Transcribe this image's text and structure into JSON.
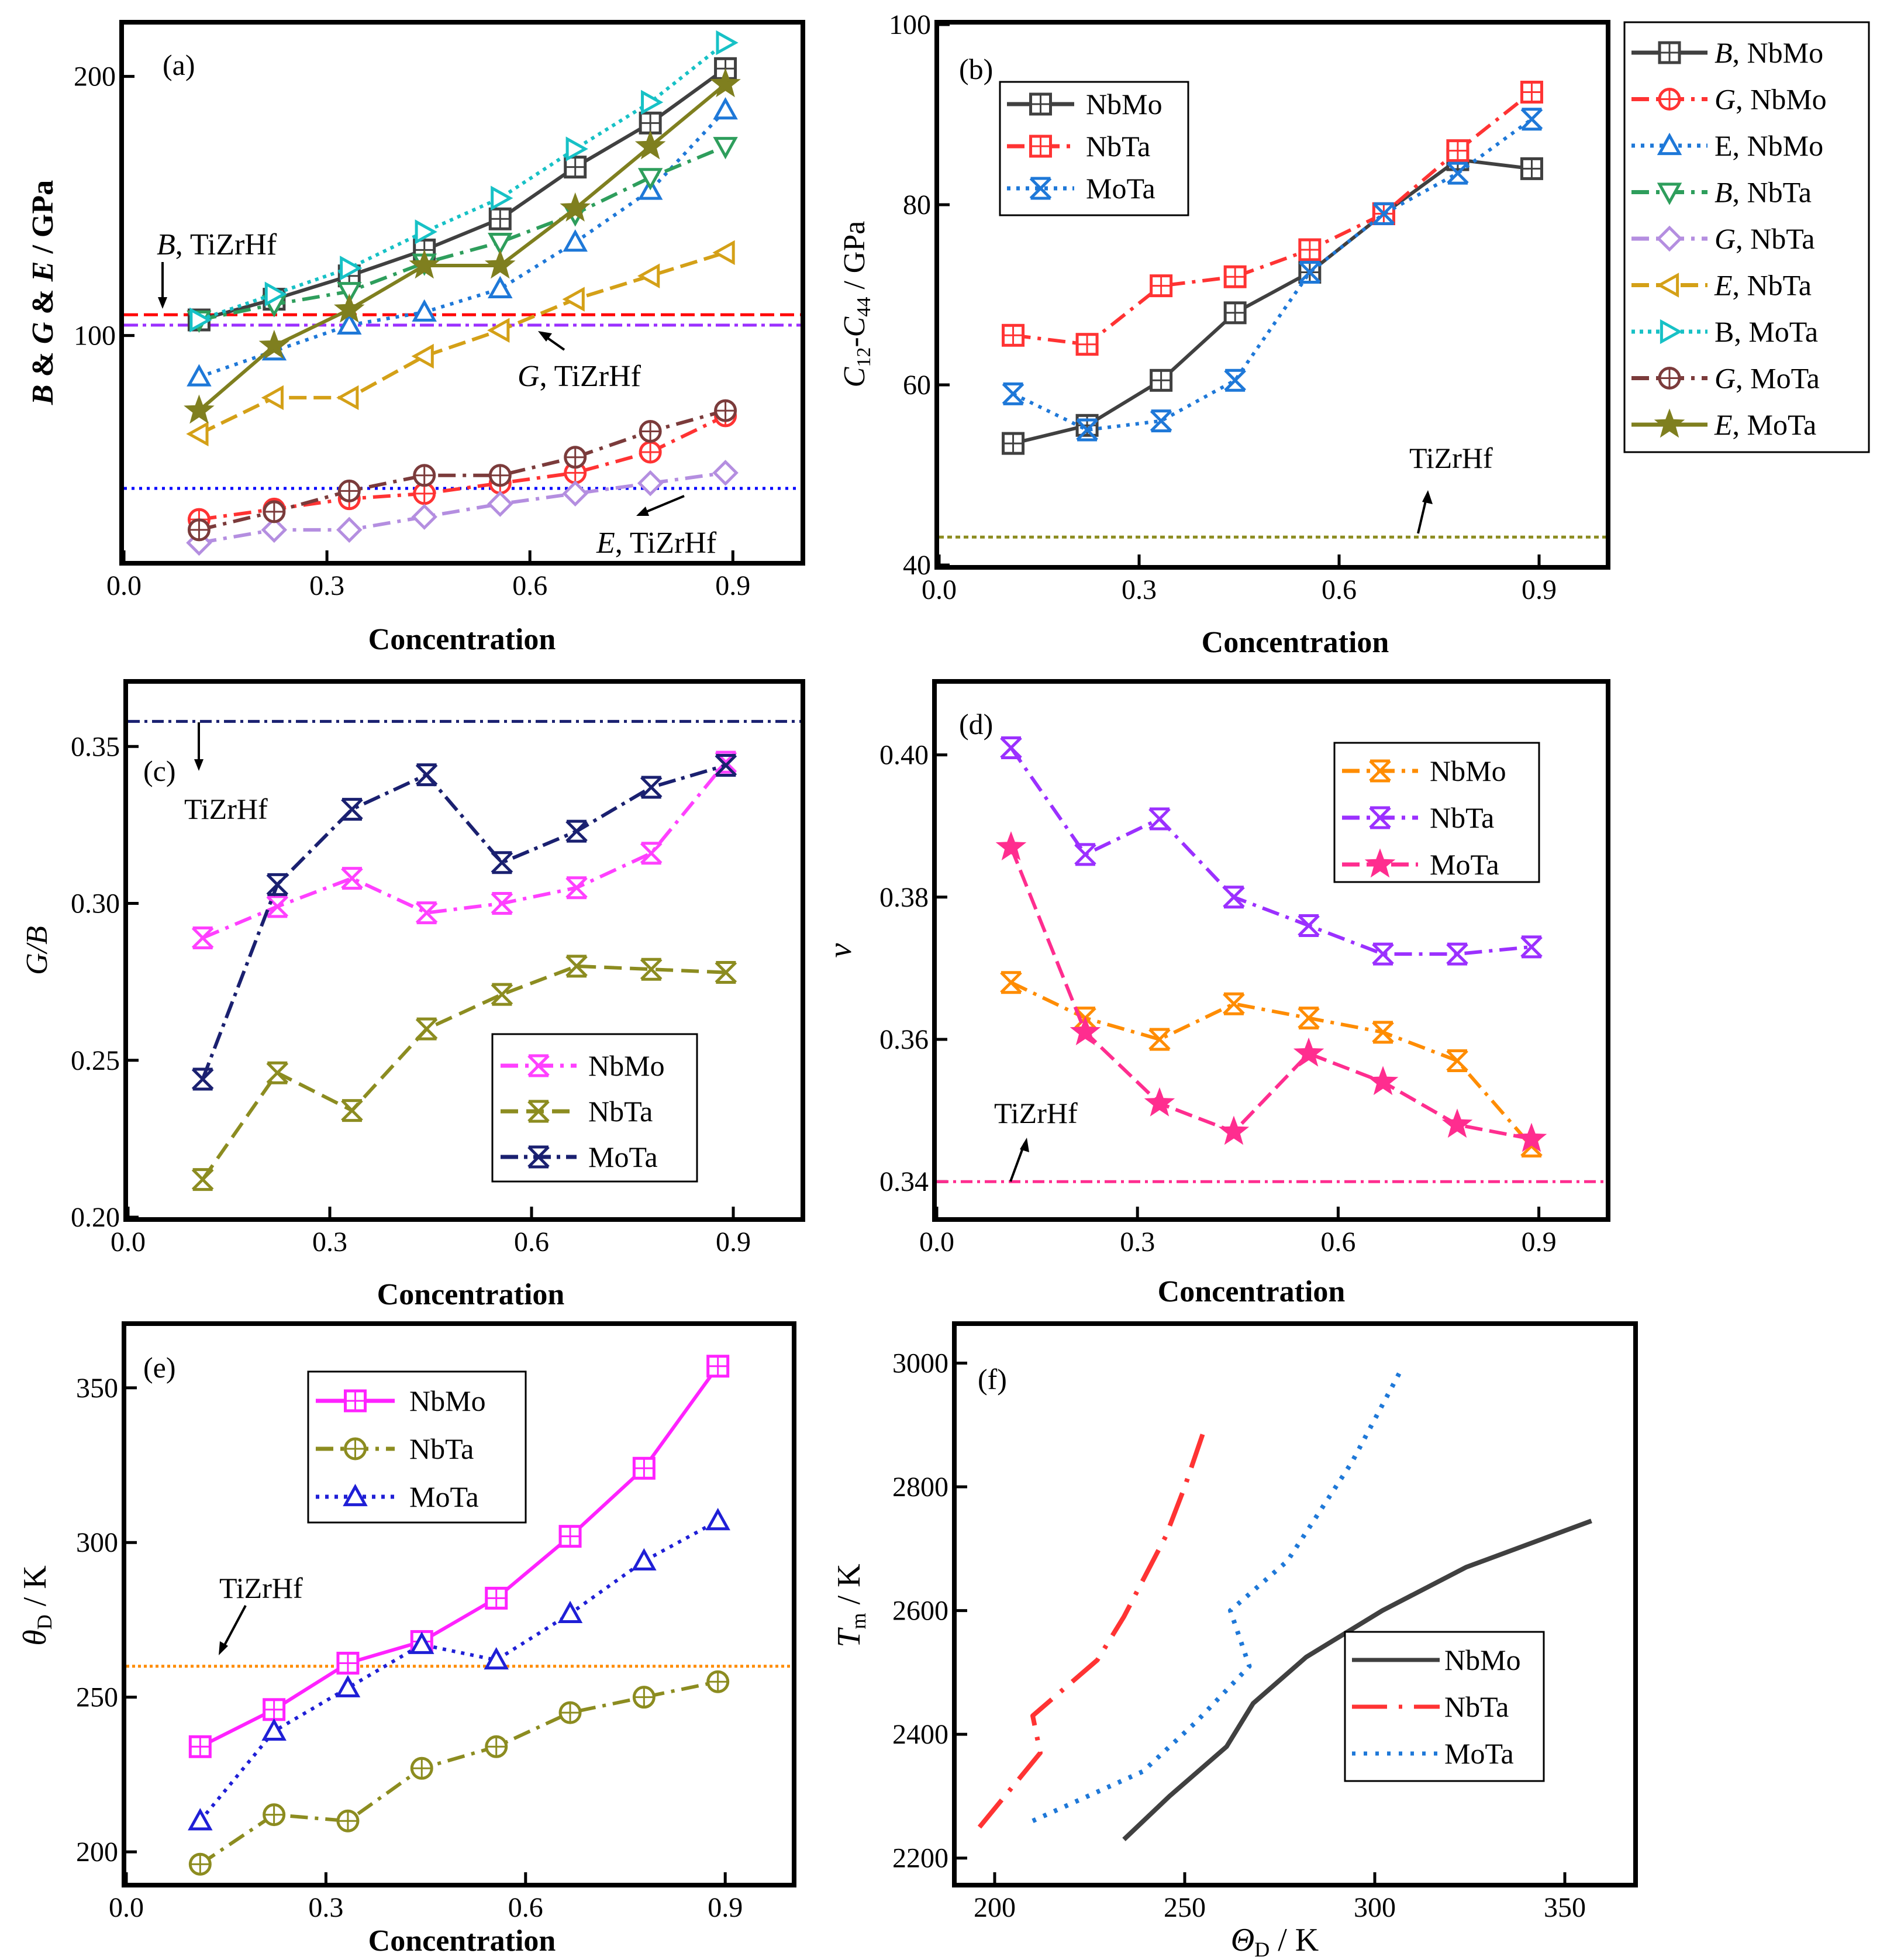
{
  "chart_data": [
    {
      "id": "a",
      "type": "line",
      "panel_label": "(a)",
      "xlabel": "Concentration",
      "ylabel": "B & G & E / GPa",
      "xlim": [
        0,
        1.0
      ],
      "ylim": [
        13,
        220
      ],
      "xticks": [
        0.0,
        0.3,
        0.6,
        0.9
      ],
      "yticks": [
        100,
        200
      ],
      "xtick_labels": [
        "0.0",
        "0.3",
        "0.6",
        "0.9"
      ],
      "ytick_labels": [
        "100",
        "200"
      ],
      "x": [
        0.111,
        0.222,
        0.333,
        0.444,
        0.556,
        0.667,
        0.778,
        0.889
      ],
      "series": [
        {
          "name": "B, NbMo",
          "color": "#404040",
          "dash": "",
          "marker": "square",
          "values": [
            106,
            114,
            123,
            133,
            145,
            165,
            182,
            203
          ]
        },
        {
          "name": "G, NbMo",
          "color": "#ff3333",
          "dash": "30 12 6 12",
          "marker": "circle",
          "values": [
            29,
            33,
            37,
            39,
            43,
            47,
            55,
            69
          ]
        },
        {
          "name": "E, NbMo",
          "color": "#1e78d8",
          "dash": "6 10",
          "marker": "triangle-up",
          "values": [
            84,
            94,
            104,
            109,
            118,
            136,
            156,
            187
          ]
        },
        {
          "name": "B, NbTa",
          "color": "#2e9e5c",
          "dash": "30 12 6 12",
          "marker": "triangle-down",
          "values": [
            106,
            112,
            117,
            128,
            136,
            147,
            161,
            173
          ]
        },
        {
          "name": "G, NbTa",
          "color": "#b48ee0",
          "dash": "30 12 6 12",
          "marker": "diamond",
          "values": [
            20,
            25,
            25,
            30,
            35,
            39,
            43,
            47
          ]
        },
        {
          "name": "E, NbTa",
          "color": "#d4a017",
          "dash": "30 12",
          "marker": "triangle-left",
          "values": [
            62,
            76,
            76,
            92,
            102,
            114,
            123,
            132
          ]
        },
        {
          "name": "B, MoTa",
          "color": "#17c1c6",
          "dash": "6 8",
          "marker": "triangle-right",
          "values": [
            106,
            116,
            126,
            140,
            153,
            172,
            190,
            213
          ]
        },
        {
          "name": "G, MoTa",
          "color": "#7b3b3b",
          "dash": "30 12 6 12",
          "marker": "circle",
          "values": [
            25,
            32,
            40,
            46,
            46,
            53,
            63,
            71
          ]
        },
        {
          "name": "E, MoTa",
          "color": "#7f7f1f",
          "dash": "",
          "marker": "star",
          "values": [
            71,
            96,
            110,
            127,
            127,
            149,
            173,
            197
          ]
        }
      ],
      "hlines": [
        {
          "name": "B, TiZrHf",
          "value": 108,
          "color": "#ff0000",
          "dash": "24 10"
        },
        {
          "name": "G, TiZrHf",
          "value": 104,
          "color": "#9b30ff",
          "dash": "24 8 6 8"
        },
        {
          "name": "E, TiZrHf",
          "value": 41,
          "color": "#0000ff",
          "dash": "5 8"
        }
      ],
      "annotations": [
        {
          "parts": [
            "B",
            ", TiZrHf"
          ]
        },
        {
          "parts": [
            "G",
            ", TiZrHf"
          ]
        },
        {
          "parts": [
            "E",
            ", TiZrHf"
          ]
        }
      ],
      "legend": {
        "placement": "outside-right",
        "entries": [
          {
            "italic": "B",
            "rest": ", NbMo"
          },
          {
            "italic": "G",
            "rest": ", NbMo"
          },
          {
            "italic": "",
            "rest": "E, NbMo"
          },
          {
            "italic": "B",
            "rest": ", NbTa"
          },
          {
            "italic": "G",
            "rest": ", NbTa"
          },
          {
            "italic": "E",
            "rest": ", NbTa"
          },
          {
            "italic": "",
            "rest": "B, MoTa"
          },
          {
            "italic": "G",
            "rest": ", MoTa"
          },
          {
            "italic": "E",
            "rest": ", MoTa"
          }
        ]
      }
    },
    {
      "id": "b",
      "type": "line",
      "panel_label": "(b)",
      "xlabel": "Concentration",
      "ylabel": "C12-C44 / GPa",
      "xlim": [
        0,
        1.0
      ],
      "ylim": [
        40,
        100
      ],
      "xticks": [
        0.0,
        0.3,
        0.6,
        0.9
      ],
      "yticks": [
        40,
        60,
        80,
        100
      ],
      "xtick_labels": [
        "0.0",
        "0.3",
        "0.6",
        "0.9"
      ],
      "ytick_labels": [
        "40",
        "60",
        "80",
        "100"
      ],
      "x": [
        0.111,
        0.222,
        0.333,
        0.444,
        0.556,
        0.667,
        0.778,
        0.889
      ],
      "series": [
        {
          "name": "NbMo",
          "color": "#404040",
          "dash": "",
          "marker": "square",
          "values": [
            53.5,
            55.5,
            60.5,
            68,
            72.5,
            79,
            85,
            84
          ]
        },
        {
          "name": "NbTa",
          "color": "#ff3333",
          "dash": "30 12 6 12",
          "marker": "square",
          "values": [
            65.5,
            64.5,
            71,
            72,
            75,
            79,
            86,
            92.5
          ]
        },
        {
          "name": "MoTa",
          "color": "#1e78d8",
          "dash": "6 10",
          "marker": "x",
          "values": [
            59,
            55,
            56,
            60.5,
            72.5,
            79,
            83.5,
            89.5
          ]
        }
      ],
      "hlines": [
        {
          "name": "TiZrHf",
          "value": 43.1,
          "color": "#8c8c20",
          "dash": "8 6"
        }
      ],
      "annotations": [
        {
          "text": "TiZrHf"
        }
      ],
      "legend": {
        "placement": "top-left",
        "entries": [
          "NbMo",
          "NbTa",
          "MoTa"
        ]
      }
    },
    {
      "id": "c",
      "type": "line",
      "panel_label": "(c)",
      "xlabel": "Concentration",
      "ylabel": "G/B",
      "xlim": [
        0,
        1.0
      ],
      "ylim": [
        0.2,
        0.37
      ],
      "xticks": [
        0.0,
        0.3,
        0.6,
        0.9
      ],
      "yticks": [
        0.2,
        0.25,
        0.3,
        0.35
      ],
      "xtick_labels": [
        "0.0",
        "0.3",
        "0.6",
        "0.9"
      ],
      "ytick_labels": [
        "0.20",
        "0.25",
        "0.30",
        "0.35"
      ],
      "x": [
        0.111,
        0.222,
        0.333,
        0.444,
        0.556,
        0.667,
        0.778,
        0.889
      ],
      "series": [
        {
          "name": "NbMo",
          "color": "#ff40ff",
          "dash": "30 12 6 12",
          "marker": "x",
          "values": [
            0.289,
            0.299,
            0.308,
            0.297,
            0.3,
            0.305,
            0.316,
            0.345
          ]
        },
        {
          "name": "NbTa",
          "color": "#8c8c20",
          "dash": "30 14",
          "marker": "x",
          "values": [
            0.212,
            0.246,
            0.234,
            0.26,
            0.271,
            0.28,
            0.279,
            0.278
          ]
        },
        {
          "name": "MoTa",
          "color": "#1a2070",
          "dash": "30 10 6 10",
          "marker": "x",
          "values": [
            0.244,
            0.306,
            0.33,
            0.341,
            0.313,
            0.323,
            0.337,
            0.344
          ]
        }
      ],
      "hlines": [
        {
          "name": "TiZrHf",
          "value": 0.358,
          "color": "#1a2070",
          "dash": "20 8 5 8"
        }
      ],
      "annotations": [
        {
          "text": "TiZrHf"
        }
      ],
      "legend": {
        "placement": "bottom-right",
        "entries": [
          "NbMo",
          "NbTa",
          "MoTa"
        ]
      }
    },
    {
      "id": "d",
      "type": "line",
      "panel_label": "(d)",
      "xlabel": "Concentration",
      "ylabel": "ν",
      "xlim": [
        0,
        1.0
      ],
      "ylim": [
        0.335,
        0.41
      ],
      "xticks": [
        0.0,
        0.3,
        0.6,
        0.9
      ],
      "yticks": [
        0.34,
        0.36,
        0.38,
        0.4
      ],
      "xtick_labels": [
        "0.0",
        "0.3",
        "0.6",
        "0.9"
      ],
      "ytick_labels": [
        "0.34",
        "0.36",
        "0.38",
        "0.40"
      ],
      "x": [
        0.111,
        0.222,
        0.333,
        0.444,
        0.556,
        0.667,
        0.778,
        0.889
      ],
      "series": [
        {
          "name": "NbMo",
          "color": "#ff8c00",
          "dash": "30 12 6 12",
          "marker": "x",
          "values": [
            0.368,
            0.363,
            0.36,
            0.365,
            0.363,
            0.361,
            0.357,
            0.345
          ]
        },
        {
          "name": "NbTa",
          "color": "#9b30ff",
          "dash": "30 12 6 12",
          "marker": "x",
          "values": [
            0.401,
            0.386,
            0.391,
            0.38,
            0.376,
            0.372,
            0.372,
            0.373
          ]
        },
        {
          "name": "MoTa",
          "color": "#ff2d8f",
          "dash": "30 12",
          "marker": "star",
          "values": [
            0.387,
            0.361,
            0.351,
            0.347,
            0.358,
            0.354,
            0.348,
            0.346
          ]
        }
      ],
      "hlines": [
        {
          "name": "TiZrHf",
          "value": 0.34,
          "color": "#ff2d8f",
          "dash": "20 8 5 8"
        }
      ],
      "annotations": [
        {
          "text": "TiZrHf"
        }
      ],
      "legend": {
        "placement": "top-center",
        "entries": [
          "NbMo",
          "NbTa",
          "MoTa"
        ]
      }
    },
    {
      "id": "e",
      "type": "line",
      "panel_label": "(e)",
      "xlabel": "Concentration",
      "ylabel": "θD / K",
      "xlim": [
        0,
        1.0
      ],
      "ylim": [
        190,
        370
      ],
      "xticks": [
        0.0,
        0.3,
        0.6,
        0.9
      ],
      "yticks": [
        200,
        250,
        300,
        350
      ],
      "xtick_labels": [
        "0.0",
        "0.3",
        "0.6",
        "0.9"
      ],
      "ytick_labels": [
        "200",
        "250",
        "300",
        "350"
      ],
      "x": [
        0.111,
        0.222,
        0.333,
        0.444,
        0.556,
        0.667,
        0.778,
        0.889
      ],
      "series": [
        {
          "name": "NbMo",
          "color": "#ff22ff",
          "dash": "",
          "marker": "square",
          "values": [
            234,
            246,
            261,
            268,
            282,
            302,
            324,
            357
          ]
        },
        {
          "name": "NbTa",
          "color": "#8c8c20",
          "dash": "30 12 6 12",
          "marker": "circle",
          "values": [
            196,
            212,
            210,
            227,
            234,
            245,
            250,
            255
          ]
        },
        {
          "name": "MoTa",
          "color": "#1f1fd6",
          "dash": "6 10",
          "marker": "triangle-up",
          "values": [
            210,
            239,
            253,
            267,
            262,
            277,
            294,
            307
          ]
        }
      ],
      "hlines": [
        {
          "name": "TiZrHf",
          "value": 260,
          "color": "#ff8c00",
          "dash": "5 5"
        }
      ],
      "annotations": [
        {
          "text": "TiZrHf"
        }
      ],
      "legend": {
        "placement": "top-left",
        "entries": [
          "NbMo",
          "NbTa",
          "MoTa"
        ]
      }
    },
    {
      "id": "f",
      "type": "line",
      "panel_label": "(f)",
      "xlabel": "θD / K",
      "ylabel": "Tm / K",
      "xlim": [
        190,
        368
      ],
      "ylim": [
        2160,
        3060
      ],
      "xticks": [
        200,
        250,
        300,
        350
      ],
      "yticks": [
        2200,
        2400,
        2600,
        2800,
        3000
      ],
      "xtick_labels": [
        "200",
        "250",
        "300",
        "350"
      ],
      "ytick_labels": [
        "2200",
        "2400",
        "2600",
        "2800",
        "3000"
      ],
      "series": [
        {
          "name": "NbMo",
          "color": "#404040",
          "dash": "",
          "marker": "none",
          "x": [
            234,
            246,
            261,
            268,
            282,
            302,
            324,
            357
          ],
          "values": [
            2230,
            2300,
            2380,
            2450,
            2525,
            2600,
            2670,
            2745
          ]
        },
        {
          "name": "NbTa",
          "color": "#ff3333",
          "dash": "60 20 6 20",
          "marker": "none",
          "x": [
            196,
            212,
            210,
            227,
            234,
            245,
            250,
            255
          ],
          "values": [
            2250,
            2370,
            2430,
            2520,
            2590,
            2720,
            2800,
            2890
          ]
        },
        {
          "name": "MoTa",
          "color": "#1e78d8",
          "dash": "6 14",
          "marker": "none",
          "x": [
            210,
            239,
            253,
            267,
            262,
            277,
            294,
            307
          ],
          "values": [
            2260,
            2340,
            2420,
            2510,
            2600,
            2680,
            2840,
            2990
          ]
        }
      ],
      "hlines": [],
      "annotations": [],
      "legend": {
        "placement": "bottom-right",
        "entries": [
          "NbMo",
          "NbTa",
          "MoTa"
        ]
      }
    }
  ]
}
